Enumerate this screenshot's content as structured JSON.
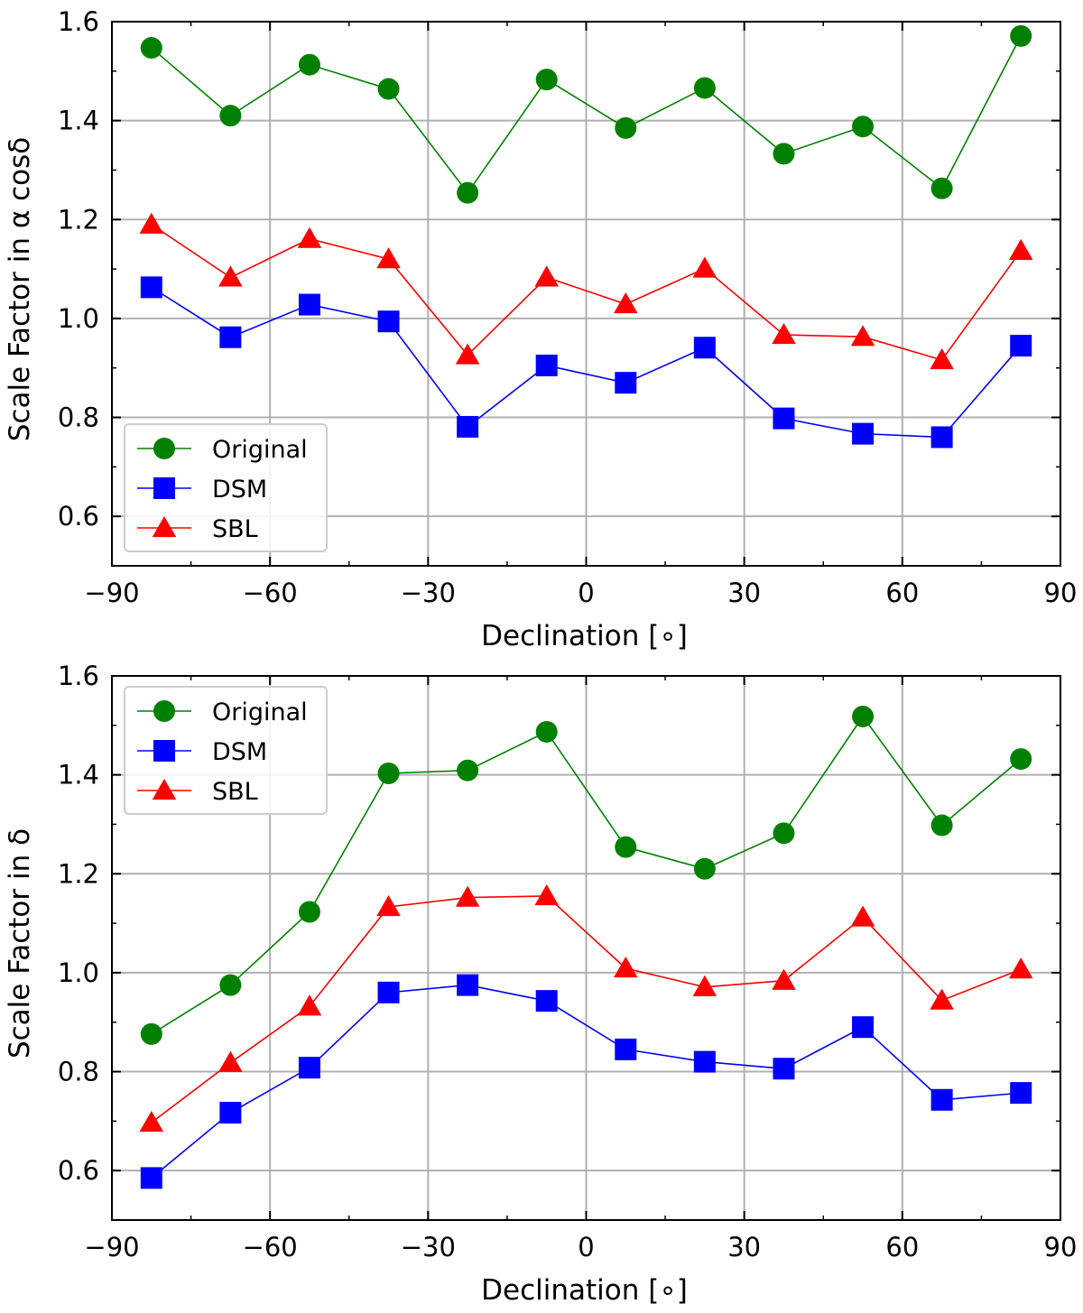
{
  "colors": {
    "original": "#008000",
    "dsm": "#0000ff",
    "sbl": "#ff0000",
    "grid": "#b0b0b0",
    "axis": "#000000"
  },
  "chart_data": [
    {
      "type": "line",
      "xlabel": "Declination [∘]",
      "ylabel": "Scale Factor in α cosδ",
      "xlim": [
        -90,
        90
      ],
      "ylim": [
        0.5,
        1.6
      ],
      "xticks": [
        -90,
        -60,
        -30,
        0,
        30,
        60,
        90
      ],
      "xtick_labels": [
        "−90",
        "−60",
        "−30",
        "0",
        "30",
        "60",
        "90"
      ],
      "yticks": [
        0.6,
        0.8,
        1.0,
        1.2,
        1.4,
        1.6
      ],
      "ytick_labels": [
        "0.6",
        "0.8",
        "1.0",
        "1.2",
        "1.4",
        "1.6"
      ],
      "grid": true,
      "legend": {
        "placement": "lower-left"
      },
      "x": [
        -82.5,
        -67.5,
        -52.5,
        -37.5,
        -22.5,
        -7.5,
        7.5,
        22.5,
        37.5,
        52.5,
        67.5,
        82.5
      ],
      "series": [
        {
          "name": "Original",
          "color": "#008000",
          "marker": "circle",
          "values": [
            1.547,
            1.41,
            1.513,
            1.464,
            1.254,
            1.483,
            1.385,
            1.466,
            1.333,
            1.388,
            1.263,
            1.571
          ]
        },
        {
          "name": "DSM",
          "color": "#0000ff",
          "marker": "square",
          "values": [
            1.063,
            0.962,
            1.028,
            0.994,
            0.781,
            0.905,
            0.87,
            0.941,
            0.798,
            0.767,
            0.76,
            0.945
          ]
        },
        {
          "name": "SBL",
          "color": "#ff0000",
          "marker": "triangle",
          "values": [
            1.19,
            1.083,
            1.161,
            1.12,
            0.926,
            1.083,
            1.029,
            1.101,
            0.967,
            0.963,
            0.916,
            1.137
          ]
        }
      ]
    },
    {
      "type": "line",
      "xlabel": "Declination [∘]",
      "ylabel": "Scale Factor in δ",
      "xlim": [
        -90,
        90
      ],
      "ylim": [
        0.5,
        1.6
      ],
      "xticks": [
        -90,
        -60,
        -30,
        0,
        30,
        60,
        90
      ],
      "xtick_labels": [
        "−90",
        "−60",
        "−30",
        "0",
        "30",
        "60",
        "90"
      ],
      "yticks": [
        0.6,
        0.8,
        1.0,
        1.2,
        1.4,
        1.6
      ],
      "ytick_labels": [
        "0.6",
        "0.8",
        "1.0",
        "1.2",
        "1.4",
        "1.6"
      ],
      "grid": true,
      "legend": {
        "placement": "upper-left"
      },
      "x": [
        -82.5,
        -67.5,
        -52.5,
        -37.5,
        -22.5,
        -7.5,
        7.5,
        22.5,
        37.5,
        52.5,
        67.5,
        82.5
      ],
      "series": [
        {
          "name": "Original",
          "color": "#008000",
          "marker": "circle",
          "values": [
            0.876,
            0.975,
            1.123,
            1.403,
            1.409,
            1.487,
            1.254,
            1.21,
            1.282,
            1.518,
            1.298,
            1.432
          ]
        },
        {
          "name": "DSM",
          "color": "#0000ff",
          "marker": "square",
          "values": [
            0.585,
            0.717,
            0.808,
            0.96,
            0.975,
            0.943,
            0.845,
            0.82,
            0.806,
            0.89,
            0.743,
            0.757
          ]
        },
        {
          "name": "SBL",
          "color": "#ff0000",
          "marker": "triangle",
          "values": [
            0.697,
            0.818,
            0.932,
            1.133,
            1.152,
            1.155,
            1.009,
            0.971,
            0.984,
            1.112,
            0.944,
            1.007
          ]
        }
      ]
    }
  ]
}
